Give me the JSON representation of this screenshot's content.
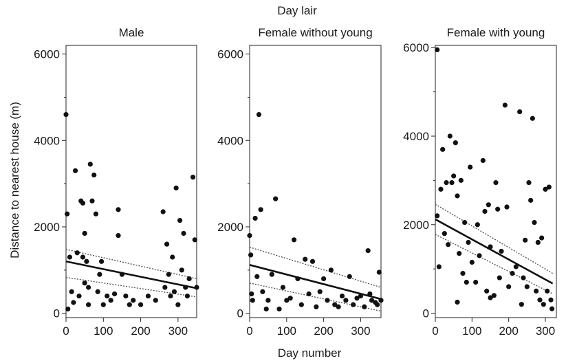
{
  "figure": {
    "supertitle": "Day lair",
    "ylabel": "Distance to nearest house (m)",
    "xlabel": "Day number"
  },
  "chart_data": [
    {
      "type": "scatter",
      "title": "Male",
      "xlim": [
        0,
        350
      ],
      "ylim": [
        -100,
        6200
      ],
      "xticks": [
        0,
        100,
        200,
        300
      ],
      "yticks": [
        0,
        2000,
        4000,
        6000
      ],
      "fit": {
        "x": [
          0,
          350
        ],
        "y": [
          1200,
          580
        ]
      },
      "ci_upper": {
        "x": [
          0,
          350
        ],
        "y": [
          1480,
          800
        ]
      },
      "ci_lower": {
        "x": [
          0,
          350
        ],
        "y": [
          830,
          380
        ]
      },
      "points": [
        [
          0,
          4600
        ],
        [
          3,
          2300
        ],
        [
          5,
          100
        ],
        [
          10,
          1300
        ],
        [
          15,
          500
        ],
        [
          25,
          3300
        ],
        [
          30,
          1400
        ],
        [
          35,
          400
        ],
        [
          40,
          2600
        ],
        [
          45,
          1300
        ],
        [
          45,
          2550
        ],
        [
          50,
          1850
        ],
        [
          50,
          700
        ],
        [
          55,
          1200
        ],
        [
          60,
          600
        ],
        [
          65,
          3450
        ],
        [
          70,
          2600
        ],
        [
          75,
          3200
        ],
        [
          80,
          2300
        ],
        [
          85,
          500
        ],
        [
          90,
          900
        ],
        [
          95,
          1200
        ],
        [
          100,
          200
        ],
        [
          110,
          400
        ],
        [
          120,
          300
        ],
        [
          140,
          2400
        ],
        [
          140,
          1800
        ],
        [
          150,
          900
        ],
        [
          160,
          400
        ],
        [
          170,
          200
        ],
        [
          180,
          300
        ],
        [
          200,
          200
        ],
        [
          220,
          400
        ],
        [
          240,
          300
        ],
        [
          260,
          2350
        ],
        [
          265,
          600
        ],
        [
          270,
          1600
        ],
        [
          275,
          900
        ],
        [
          280,
          400
        ],
        [
          285,
          1300
        ],
        [
          290,
          500
        ],
        [
          295,
          2900
        ],
        [
          300,
          200
        ],
        [
          305,
          2150
        ],
        [
          310,
          1000
        ],
        [
          315,
          1850
        ],
        [
          320,
          600
        ],
        [
          325,
          400
        ],
        [
          330,
          800
        ],
        [
          340,
          3150
        ],
        [
          345,
          1700
        ],
        [
          350,
          600
        ],
        [
          20,
          250
        ],
        [
          60,
          200
        ],
        [
          130,
          450
        ]
      ]
    },
    {
      "type": "scatter",
      "title": "Female without young",
      "xlim": [
        0,
        355
      ],
      "ylim": [
        -100,
        6200
      ],
      "xticks": [
        0,
        100,
        200,
        300
      ],
      "yticks": [
        0,
        2000,
        4000,
        6000
      ],
      "fit": {
        "x": [
          0,
          355
        ],
        "y": [
          1120,
          330
        ]
      },
      "ci_upper": {
        "x": [
          0,
          355
        ],
        "y": [
          1530,
          600
        ]
      },
      "ci_lower": {
        "x": [
          0,
          355
        ],
        "y": [
          700,
          50
        ]
      },
      "points": [
        [
          0,
          1800
        ],
        [
          3,
          1350
        ],
        [
          5,
          450
        ],
        [
          8,
          300
        ],
        [
          15,
          2200
        ],
        [
          25,
          4600
        ],
        [
          30,
          2400
        ],
        [
          35,
          500
        ],
        [
          50,
          300
        ],
        [
          60,
          900
        ],
        [
          70,
          2650
        ],
        [
          80,
          100
        ],
        [
          90,
          600
        ],
        [
          100,
          300
        ],
        [
          110,
          350
        ],
        [
          120,
          1700
        ],
        [
          130,
          800
        ],
        [
          140,
          200
        ],
        [
          150,
          1250
        ],
        [
          160,
          450
        ],
        [
          170,
          1200
        ],
        [
          180,
          150
        ],
        [
          190,
          500
        ],
        [
          200,
          800
        ],
        [
          210,
          300
        ],
        [
          220,
          1000
        ],
        [
          230,
          200
        ],
        [
          240,
          150
        ],
        [
          250,
          400
        ],
        [
          260,
          300
        ],
        [
          270,
          850
        ],
        [
          280,
          200
        ],
        [
          290,
          350
        ],
        [
          300,
          400
        ],
        [
          310,
          150
        ],
        [
          320,
          1450
        ],
        [
          325,
          450
        ],
        [
          330,
          300
        ],
        [
          340,
          250
        ],
        [
          345,
          200
        ],
        [
          350,
          950
        ],
        [
          355,
          300
        ],
        [
          20,
          850
        ],
        [
          45,
          100
        ]
      ]
    },
    {
      "type": "scatter",
      "title": "Female with young",
      "xlim": [
        0,
        330
      ],
      "ylim": [
        -100,
        6050
      ],
      "xticks": [
        0,
        100,
        200,
        300
      ],
      "yticks": [
        0,
        2000,
        4000,
        6000
      ],
      "fit": {
        "x": [
          0,
          320
        ],
        "y": [
          2120,
          670
        ]
      },
      "ci_upper": {
        "x": [
          0,
          320
        ],
        "y": [
          2460,
          900
        ]
      },
      "ci_lower": {
        "x": [
          0,
          320
        ],
        "y": [
          1780,
          440
        ]
      },
      "points": [
        [
          5,
          5950
        ],
        [
          5,
          2200
        ],
        [
          10,
          1050
        ],
        [
          15,
          2800
        ],
        [
          20,
          3700
        ],
        [
          25,
          1800
        ],
        [
          30,
          2950
        ],
        [
          35,
          1550
        ],
        [
          40,
          4000
        ],
        [
          45,
          2950
        ],
        [
          50,
          3100
        ],
        [
          55,
          3850
        ],
        [
          60,
          2650
        ],
        [
          65,
          1350
        ],
        [
          70,
          3000
        ],
        [
          75,
          900
        ],
        [
          80,
          2050
        ],
        [
          85,
          700
        ],
        [
          90,
          1600
        ],
        [
          95,
          3300
        ],
        [
          100,
          1150
        ],
        [
          110,
          700
        ],
        [
          115,
          2000
        ],
        [
          120,
          1300
        ],
        [
          130,
          3450
        ],
        [
          135,
          2300
        ],
        [
          140,
          500
        ],
        [
          145,
          2450
        ],
        [
          150,
          1500
        ],
        [
          160,
          400
        ],
        [
          165,
          2950
        ],
        [
          170,
          2350
        ],
        [
          175,
          800
        ],
        [
          180,
          1400
        ],
        [
          190,
          4700
        ],
        [
          195,
          2400
        ],
        [
          200,
          600
        ],
        [
          210,
          900
        ],
        [
          220,
          1050
        ],
        [
          230,
          4550
        ],
        [
          235,
          200
        ],
        [
          240,
          800
        ],
        [
          245,
          1650
        ],
        [
          250,
          600
        ],
        [
          255,
          2950
        ],
        [
          260,
          2550
        ],
        [
          265,
          4400
        ],
        [
          270,
          2050
        ],
        [
          275,
          500
        ],
        [
          280,
          1600
        ],
        [
          285,
          300
        ],
        [
          290,
          1700
        ],
        [
          295,
          200
        ],
        [
          300,
          2800
        ],
        [
          305,
          500
        ],
        [
          310,
          2850
        ],
        [
          315,
          300
        ],
        [
          318,
          100
        ],
        [
          60,
          250
        ],
        [
          150,
          350
        ]
      ]
    }
  ]
}
